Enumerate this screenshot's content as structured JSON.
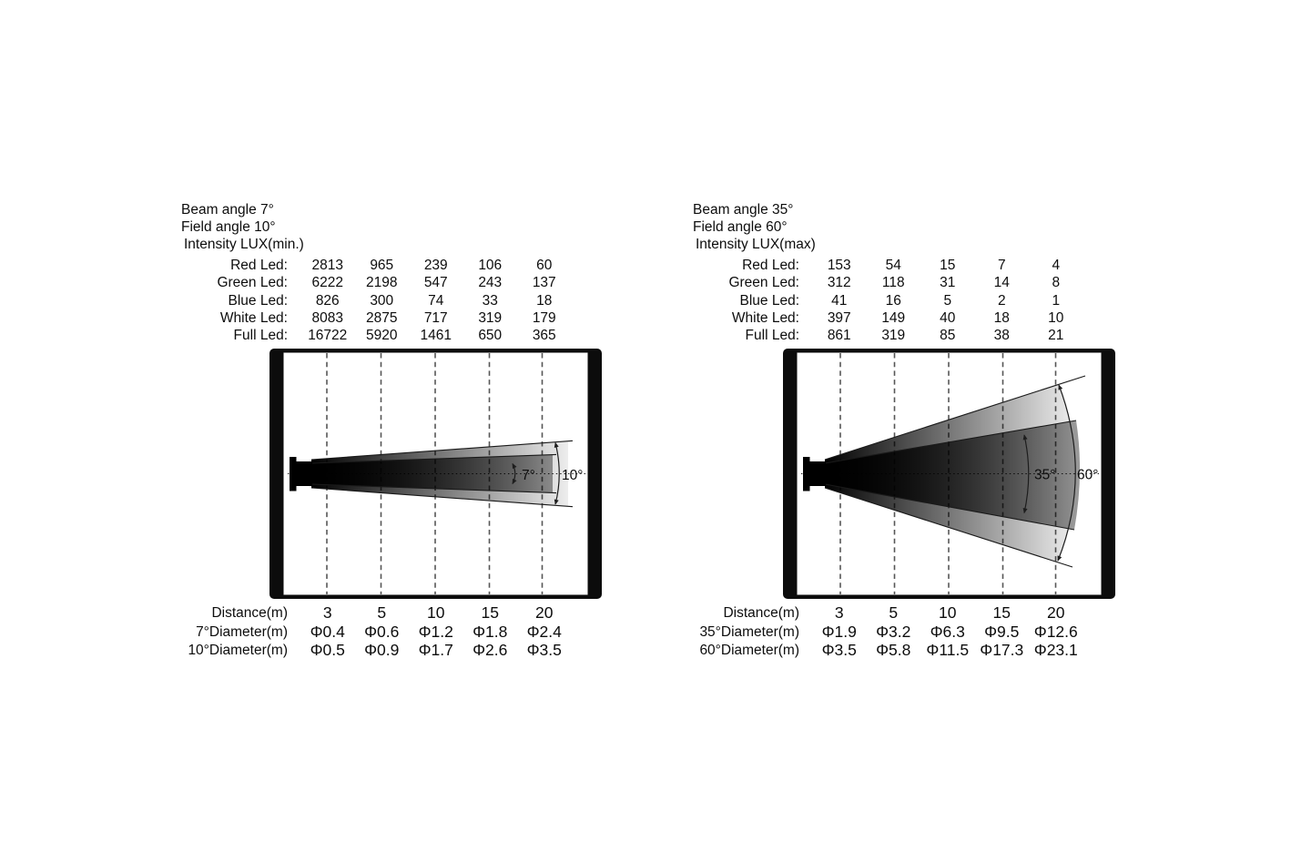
{
  "panels": [
    {
      "header_lines": [
        "Beam angle 7°",
        "Field angle 10°",
        "Intensity LUX(min.)"
      ],
      "led_rows": [
        {
          "label": "Red Led:",
          "values": [
            "2813",
            "965",
            "239",
            "106",
            "60"
          ]
        },
        {
          "label": "Green Led:",
          "values": [
            "6222",
            "2198",
            "547",
            "243",
            "137"
          ]
        },
        {
          "label": "Blue Led:",
          "values": [
            "826",
            "300",
            "74",
            "33",
            "18"
          ]
        },
        {
          "label": "White Led:",
          "values": [
            "8083",
            "2875",
            "717",
            "319",
            "179"
          ]
        },
        {
          "label": "Full Led:",
          "values": [
            "16722",
            "5920",
            "1461",
            "650",
            "365"
          ]
        }
      ],
      "figure": {
        "beam_angle": "7°",
        "field_angle": "10°"
      },
      "bottom_rows": [
        {
          "label": "Distance(m)",
          "values": [
            "3",
            "5",
            "10",
            "15",
            "20"
          ]
        },
        {
          "label": "7°Diameter(m)",
          "values": [
            "Φ0.4",
            "Φ0.6",
            "Φ1.2",
            "Φ1.8",
            "Φ2.4"
          ]
        },
        {
          "label": "10°Diameter(m)",
          "values": [
            "Φ0.5",
            "Φ0.9",
            "Φ1.7",
            "Φ2.6",
            "Φ3.5"
          ]
        }
      ]
    },
    {
      "header_lines": [
        "Beam angle 35°",
        "Field angle 60°",
        "Intensity LUX(max)"
      ],
      "led_rows": [
        {
          "label": "Red Led:",
          "values": [
            "153",
            "54",
            "15",
            "7",
            "4"
          ]
        },
        {
          "label": "Green Led:",
          "values": [
            "312",
            "118",
            "31",
            "14",
            "8"
          ]
        },
        {
          "label": "Blue Led:",
          "values": [
            "41",
            "16",
            "5",
            "2",
            "1"
          ]
        },
        {
          "label": "White Led:",
          "values": [
            "397",
            "149",
            "40",
            "18",
            "10"
          ]
        },
        {
          "label": "Full Led:",
          "values": [
            "861",
            "319",
            "85",
            "38",
            "21"
          ]
        }
      ],
      "figure": {
        "beam_angle": "35°",
        "field_angle": "60°"
      },
      "bottom_rows": [
        {
          "label": "Distance(m)",
          "values": [
            "3",
            "5",
            "10",
            "15",
            "20"
          ]
        },
        {
          "label": "35°Diameter(m)",
          "values": [
            "Φ1.9",
            "Φ3.2",
            "Φ6.3",
            "Φ9.5",
            "Φ12.6"
          ]
        },
        {
          "label": "60°Diameter(m)",
          "values": [
            "Φ3.5",
            "Φ5.8",
            "Φ11.5",
            "Φ17.3",
            "Φ23.1"
          ]
        }
      ]
    }
  ]
}
